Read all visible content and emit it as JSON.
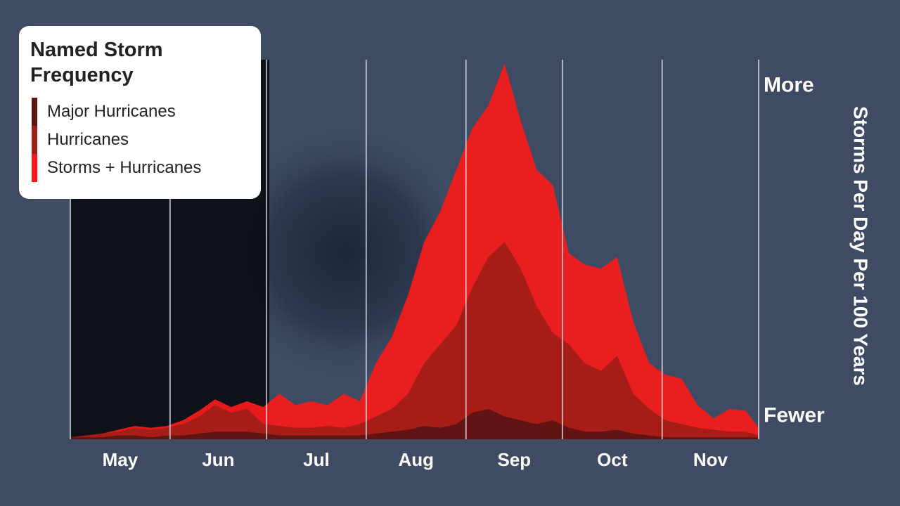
{
  "chart_data": {
    "type": "area",
    "title": "Named Storm Frequency",
    "y_label": "Storms Per Day Per 100 Years",
    "x": [
      0,
      5,
      10,
      15,
      20,
      25,
      30,
      35,
      40,
      45,
      50,
      55,
      60,
      65,
      70,
      75,
      80,
      85,
      90,
      95,
      100,
      105,
      110,
      115,
      120,
      125,
      130,
      135,
      140,
      145,
      150,
      155,
      160,
      165,
      170,
      175,
      180,
      185,
      190,
      195,
      200,
      205,
      210,
      214
    ],
    "xlim": [
      0,
      214
    ],
    "xticks": [
      {
        "value": 15.5,
        "label": "May"
      },
      {
        "value": 46,
        "label": "Jun"
      },
      {
        "value": 76.5,
        "label": "Jul"
      },
      {
        "value": 107.5,
        "label": "Aug"
      },
      {
        "value": 138,
        "label": "Sep"
      },
      {
        "value": 168.5,
        "label": "Oct"
      },
      {
        "value": 199,
        "label": "Nov"
      }
    ],
    "month_starts": [
      0,
      31,
      61,
      92,
      123,
      153,
      184,
      214
    ],
    "ylim": [
      0,
      100
    ],
    "yticks": [
      {
        "value": 6,
        "label": "Fewer"
      },
      {
        "value": 93,
        "label": "More"
      }
    ],
    "series": [
      {
        "name": "Storms + Hurricanes",
        "color": "#f21b1b",
        "values": [
          0.5,
          1,
          1.5,
          2.5,
          3.5,
          3,
          3.5,
          5,
          7.5,
          10.5,
          8.5,
          10,
          8.5,
          12,
          9,
          10,
          9,
          12,
          10,
          20,
          27,
          38,
          52,
          60,
          71,
          82,
          88,
          99,
          84,
          71,
          67,
          49,
          46,
          45,
          48,
          31,
          20,
          17,
          16,
          9,
          5.5,
          8,
          7.5,
          3
        ]
      },
      {
        "name": "Hurricanes",
        "color": "#a11d16",
        "values": [
          0.5,
          1,
          1.5,
          2,
          3,
          2.5,
          3,
          4,
          6,
          9,
          7,
          8,
          4,
          3.5,
          3,
          3,
          3.5,
          3,
          4,
          6,
          8,
          12,
          20,
          25,
          30,
          40,
          48,
          52,
          45,
          35,
          28,
          25,
          20,
          18,
          22,
          12,
          8,
          5,
          4,
          3,
          2.5,
          2,
          2,
          1
        ]
      },
      {
        "name": "Major Hurricanes",
        "color": "#5e1412",
        "values": [
          0.5,
          0.5,
          0.5,
          1,
          1,
          0.5,
          1,
          1,
          1.5,
          2,
          2,
          2,
          1.5,
          1,
          1,
          1,
          1,
          1,
          1,
          1.5,
          2,
          2.5,
          3.5,
          3,
          4,
          7,
          8,
          6,
          5,
          4,
          5,
          3,
          2,
          2,
          2.5,
          1.5,
          1,
          0.5,
          0.5,
          0.5,
          0.5,
          0.5,
          0.5,
          0.5
        ]
      }
    ]
  }
}
